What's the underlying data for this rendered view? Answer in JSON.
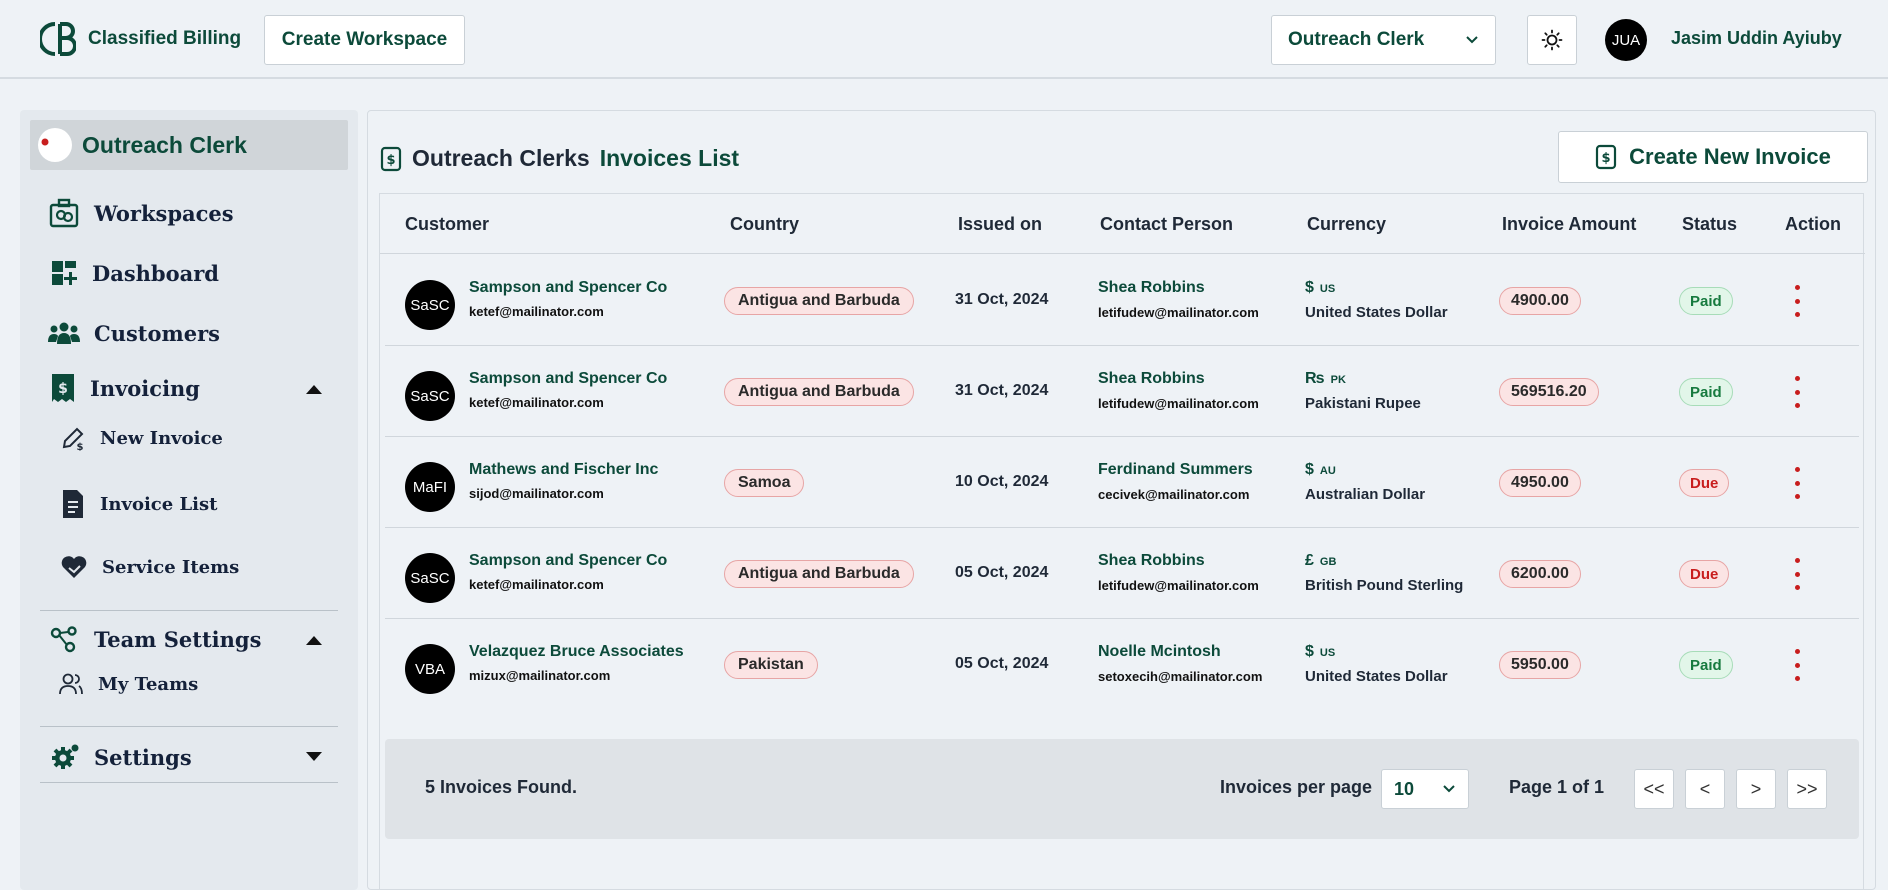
{
  "header": {
    "brand": "Classified Billing",
    "create_workspace": "Create Workspace",
    "workspace_selected": "Outreach Clerk",
    "user_initials": "JUA",
    "user_name": "Jasim Uddin Ayiuby"
  },
  "sidebar": {
    "workspace_name": "Outreach Clerk",
    "logo_text": "Outreach Clerk",
    "items": {
      "workspaces": "Workspaces",
      "dashboard": "Dashboard",
      "customers": "Customers",
      "invoicing": "Invoicing",
      "new_invoice": "New Invoice",
      "invoice_list": "Invoice List",
      "service_items": "Service Items",
      "team_settings": "Team Settings",
      "my_teams": "My Teams",
      "settings": "Settings"
    }
  },
  "main": {
    "title_prefix": "Outreach Clerks",
    "title_suffix": "Invoices List",
    "create_new_invoice": "Create New Invoice",
    "columns": {
      "customer": "Customer",
      "country": "Country",
      "issued_on": "Issued on",
      "contact_person": "Contact Person",
      "currency": "Currency",
      "invoice_amount": "Invoice Amount",
      "status": "Status",
      "action": "Action"
    },
    "rows": [
      {
        "initials": "SaSC",
        "customer": "Sampson and Spencer Co",
        "email": "ketef@mailinator.com",
        "country": "Antigua and Barbuda",
        "issued": "31 Oct, 2024",
        "contact": "Shea Robbins",
        "contact_email": "letifudew@mailinator.com",
        "symbol": "$",
        "code": "US",
        "currency": "United States Dollar",
        "amount": "4900.00",
        "status": "Paid"
      },
      {
        "initials": "SaSC",
        "customer": "Sampson and Spencer Co",
        "email": "ketef@mailinator.com",
        "country": "Antigua and Barbuda",
        "issued": "31 Oct, 2024",
        "contact": "Shea Robbins",
        "contact_email": "letifudew@mailinator.com",
        "symbol": "₨",
        "code": "PK",
        "currency": "Pakistani Rupee",
        "amount": "569516.20",
        "status": "Paid"
      },
      {
        "initials": "MaFI",
        "customer": "Mathews and Fischer Inc",
        "email": "sijod@mailinator.com",
        "country": "Samoa",
        "issued": "10 Oct, 2024",
        "contact": "Ferdinand Summers",
        "contact_email": "cecivek@mailinator.com",
        "symbol": "$",
        "code": "AU",
        "currency": "Australian Dollar",
        "amount": "4950.00",
        "status": "Due"
      },
      {
        "initials": "SaSC",
        "customer": "Sampson and Spencer Co",
        "email": "ketef@mailinator.com",
        "country": "Antigua and Barbuda",
        "issued": "05 Oct, 2024",
        "contact": "Shea Robbins",
        "contact_email": "letifudew@mailinator.com",
        "symbol": "£",
        "code": "GB",
        "currency": "British Pound Sterling",
        "amount": "6200.00",
        "status": "Due"
      },
      {
        "initials": "VBA",
        "customer": "Velazquez Bruce Associates",
        "email": "mizux@mailinator.com",
        "country": "Pakistan",
        "issued": "05 Oct, 2024",
        "contact": "Noelle Mcintosh",
        "contact_email": "setoxecih@mailinator.com",
        "symbol": "$",
        "code": "US",
        "currency": "United States Dollar",
        "amount": "5950.00",
        "status": "Paid"
      }
    ],
    "footer": {
      "found": "5 Invoices Found.",
      "per_page_label": "Invoices per page",
      "per_page_value": "10",
      "page_info": "Page 1 of 1",
      "first": "<<",
      "prev": "<",
      "next": ">",
      "last": ">>"
    }
  },
  "colors": {
    "brand": "#0c4a3a",
    "paid": "#177a3f",
    "due": "#c81e1e",
    "pill_bg": "#fbe4e4"
  }
}
